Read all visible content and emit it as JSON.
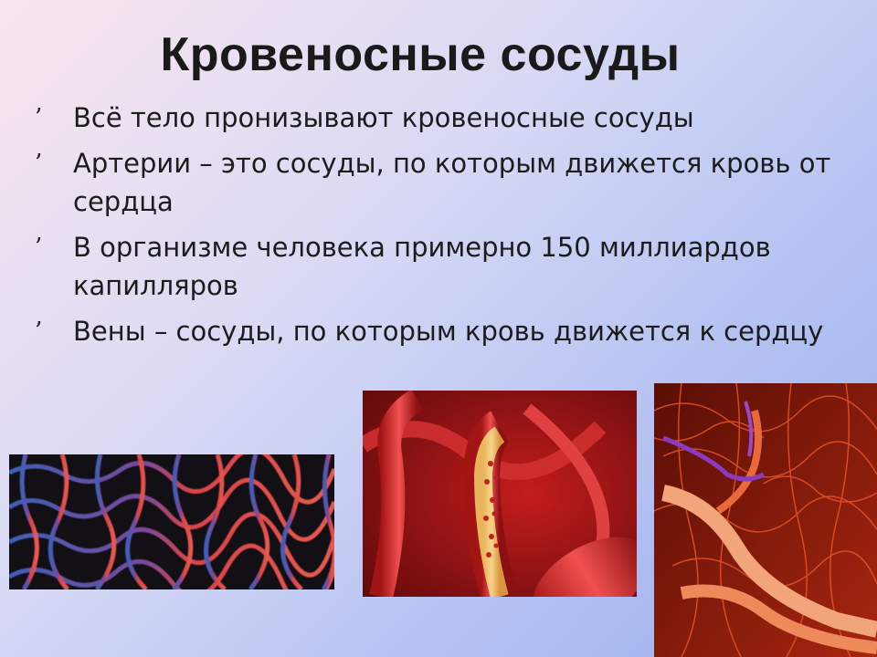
{
  "slide": {
    "title": "Кровеносные сосуды",
    "bullet_symbol": "’",
    "bullets": [
      "Всё тело пронизывают кровеносные сосуды",
      "Артерии – это сосуды, по которым движется кровь от сердца",
      "В организме человека примерно 150 миллиардов капилляров",
      "Вены – сосуды, по которым кровь движется к сердцу"
    ]
  },
  "images": [
    {
      "name": "capillary-network-image",
      "colors": [
        "#3f5fb8",
        "#d9444a",
        "#121015"
      ]
    },
    {
      "name": "artery-cross-section-image",
      "colors": [
        "#8c0f12",
        "#d42a2a",
        "#e9b45a"
      ]
    },
    {
      "name": "vessel-tree-image",
      "colors": [
        "#7a1208",
        "#e2542c",
        "#f2a57a",
        "#8a3bc0"
      ]
    }
  ]
}
